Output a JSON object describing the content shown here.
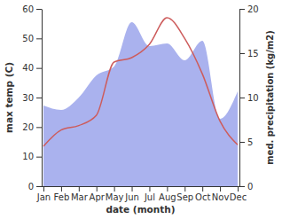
{
  "chart_data": {
    "type": "line",
    "x_label": "date (month)",
    "y_label": "max temp (C)",
    "y2_label": "med. precipitation (kg/m2)",
    "categories": [
      "Jan",
      "Feb",
      "Mar",
      "Apr",
      "May",
      "Jun",
      "Jul",
      "Aug",
      "Sep",
      "Oct",
      "Nov",
      "Dec"
    ],
    "series": [
      {
        "type": "area",
        "axis": "y2",
        "color": "#aab2ee",
        "values": [
          9.1,
          8.6,
          10,
          12.5,
          13.5,
          18.5,
          15.8,
          16.1,
          14.2,
          16.4,
          7.6,
          10.7
        ]
      },
      {
        "type": "line",
        "color": "#cd5c5c",
        "values": [
          13.5,
          19,
          20.5,
          24,
          42,
          43.5,
          48,
          57,
          50,
          38,
          22,
          14
        ]
      }
    ],
    "ylim": [
      0,
      60
    ],
    "yticks": [
      0,
      10,
      20,
      30,
      40,
      50,
      60
    ],
    "y2lim": [
      0,
      20
    ],
    "y2ticks": [
      0,
      5,
      10,
      15,
      20
    ],
    "grid": false
  }
}
